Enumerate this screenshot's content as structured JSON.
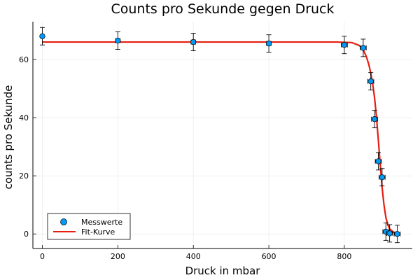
{
  "chart_data": {
    "type": "scatter",
    "title": "Counts pro Sekunde gegen Druck",
    "xlabel": "Druck in mbar",
    "ylabel": "counts pro Sekunde",
    "xlim": [
      -25,
      980
    ],
    "ylim": [
      -5,
      73
    ],
    "xticks": [
      0,
      200,
      400,
      600,
      800
    ],
    "yticks": [
      0,
      20,
      40,
      60
    ],
    "grid": true,
    "legend_position": "bottom-left",
    "series": [
      {
        "name": "Messwerte",
        "kind": "scatter",
        "color": "#009af9",
        "points": [
          {
            "x": 0,
            "y": 68.0,
            "xerr": 0,
            "yerr": 3.0
          },
          {
            "x": 200,
            "y": 66.5,
            "xerr": 6,
            "yerr": 3.0
          },
          {
            "x": 400,
            "y": 66.0,
            "xerr": 6,
            "yerr": 3.0
          },
          {
            "x": 600,
            "y": 65.5,
            "xerr": 6,
            "yerr": 3.0
          },
          {
            "x": 800,
            "y": 65.0,
            "xerr": 8,
            "yerr": 3.0
          },
          {
            "x": 850,
            "y": 64.0,
            "xerr": 8,
            "yerr": 3.0
          },
          {
            "x": 870,
            "y": 52.5,
            "xerr": 8,
            "yerr": 3.0
          },
          {
            "x": 880,
            "y": 39.5,
            "xerr": 8,
            "yerr": 3.0
          },
          {
            "x": 890,
            "y": 25.0,
            "xerr": 8,
            "yerr": 3.0
          },
          {
            "x": 900,
            "y": 19.5,
            "xerr": 8,
            "yerr": 3.0
          },
          {
            "x": 910,
            "y": 0.8,
            "xerr": 8,
            "yerr": 3.0
          },
          {
            "x": 920,
            "y": 0.2,
            "xerr": 8,
            "yerr": 3.0
          },
          {
            "x": 940,
            "y": 0.0,
            "xerr": 8,
            "yerr": 3.0
          }
        ]
      },
      {
        "name": "Fit-Kurve",
        "kind": "line",
        "color": "#e51e10",
        "x": [
          0,
          200,
          400,
          600,
          780,
          820,
          840,
          850,
          858,
          865,
          870,
          875,
          880,
          885,
          890,
          895,
          900,
          905,
          910,
          915,
          920,
          930,
          940
        ],
        "y": [
          66.0,
          66.0,
          66.0,
          66.0,
          66.0,
          65.8,
          64.8,
          63.3,
          61.1,
          58.2,
          55.3,
          51.7,
          46.9,
          40.4,
          32.3,
          24.0,
          16.0,
          10.0,
          5.7,
          3.2,
          1.8,
          0.6,
          0.3
        ]
      }
    ]
  }
}
